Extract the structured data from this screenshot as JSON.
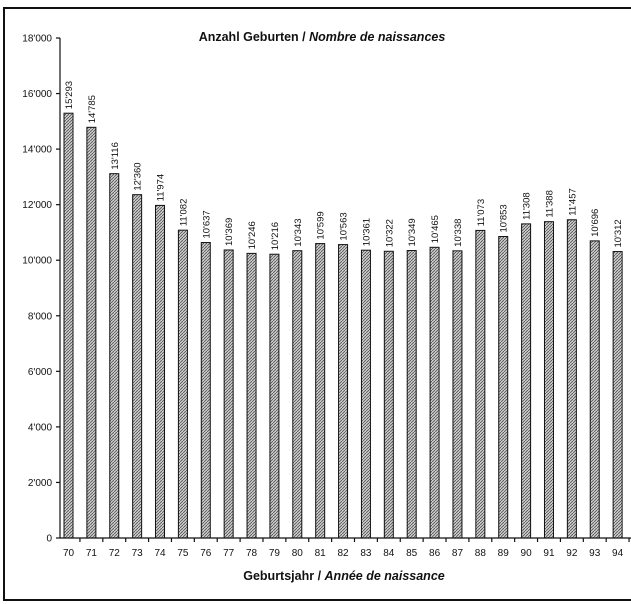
{
  "chart_data": {
    "type": "bar",
    "title_part1": "Anzahl Geburten / ",
    "title_part2": "Nombre de naissances",
    "xlabel_part1": "Geburtsjahr / ",
    "xlabel_part2": "Année de naissance",
    "ylabel": "",
    "ylim": [
      0,
      18000
    ],
    "yticks": [
      0,
      2000,
      4000,
      6000,
      8000,
      10000,
      12000,
      14000,
      16000,
      18000
    ],
    "ytick_labels": [
      "0",
      "2'000",
      "4'000",
      "6'000",
      "8'000",
      "10'000",
      "12'000",
      "14'000",
      "16'000",
      "18'000"
    ],
    "categories": [
      "70",
      "71",
      "72",
      "73",
      "74",
      "75",
      "76",
      "77",
      "78",
      "79",
      "80",
      "81",
      "82",
      "83",
      "84",
      "85",
      "86",
      "87",
      "88",
      "89",
      "90",
      "91",
      "92",
      "93",
      "94"
    ],
    "values": [
      15293,
      14785,
      13116,
      12360,
      11974,
      11082,
      10637,
      10369,
      10246,
      10216,
      10343,
      10599,
      10563,
      10361,
      10322,
      10349,
      10465,
      10338,
      11073,
      10853,
      11308,
      11388,
      11457,
      10696,
      10312
    ],
    "value_labels": [
      "15'293",
      "14'785",
      "13'116",
      "12'360",
      "11'974",
      "11'082",
      "10'637",
      "10'369",
      "10'246",
      "10'216",
      "10'343",
      "10'599",
      "10'563",
      "10'361",
      "10'322",
      "10'349",
      "10'465",
      "10'338",
      "11'073",
      "10'853",
      "11'308",
      "11'388",
      "11'457",
      "10'696",
      "10'312"
    ],
    "grid": false,
    "legend": "none",
    "bar_fill": "#9a9a9a",
    "colors": {
      "ink": "#111111",
      "background": "#ffffff"
    }
  }
}
